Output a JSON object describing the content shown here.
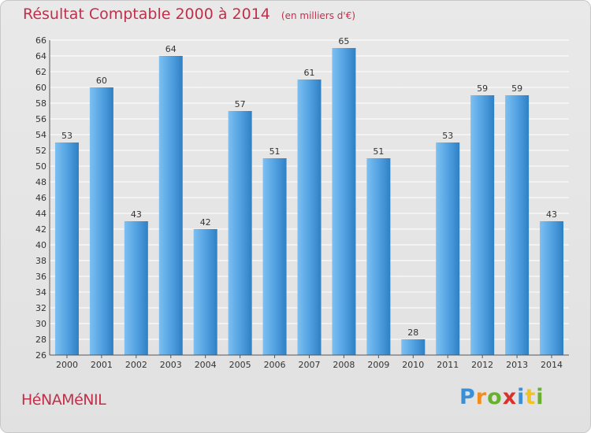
{
  "title": "Résultat Comptable 2000 à 2014",
  "subtitle": "(en milliers d'€)",
  "commune": "HéNAMéNIL",
  "brand": {
    "letters": [
      "P",
      "r",
      "o",
      "x",
      "i",
      "t",
      "i"
    ],
    "colors": [
      "#3b8fd6",
      "#f28c1e",
      "#69b02e",
      "#d9322d",
      "#3b8fd6",
      "#f2c21e",
      "#69b02e"
    ]
  },
  "colors": {
    "accent": "#c0304a",
    "bar_light": "#6cb4ee",
    "bar_dark": "#2f7fc4",
    "grid": "#ffffff"
  },
  "chart_data": {
    "type": "bar",
    "categories": [
      "2000",
      "2001",
      "2002",
      "2003",
      "2004",
      "2005",
      "2006",
      "2007",
      "2008",
      "2009",
      "2010",
      "2011",
      "2012",
      "2013",
      "2014"
    ],
    "values": [
      53,
      60,
      43,
      64,
      42,
      57,
      51,
      61,
      65,
      51,
      28,
      53,
      59,
      59,
      43
    ],
    "ylim": [
      26,
      66
    ],
    "yticks": [
      26,
      28,
      30,
      32,
      34,
      36,
      38,
      40,
      42,
      44,
      46,
      48,
      50,
      52,
      54,
      56,
      58,
      60,
      62,
      64,
      66
    ],
    "grid": true,
    "title": "Résultat Comptable 2000 à 2014",
    "xlabel": "",
    "ylabel": ""
  }
}
